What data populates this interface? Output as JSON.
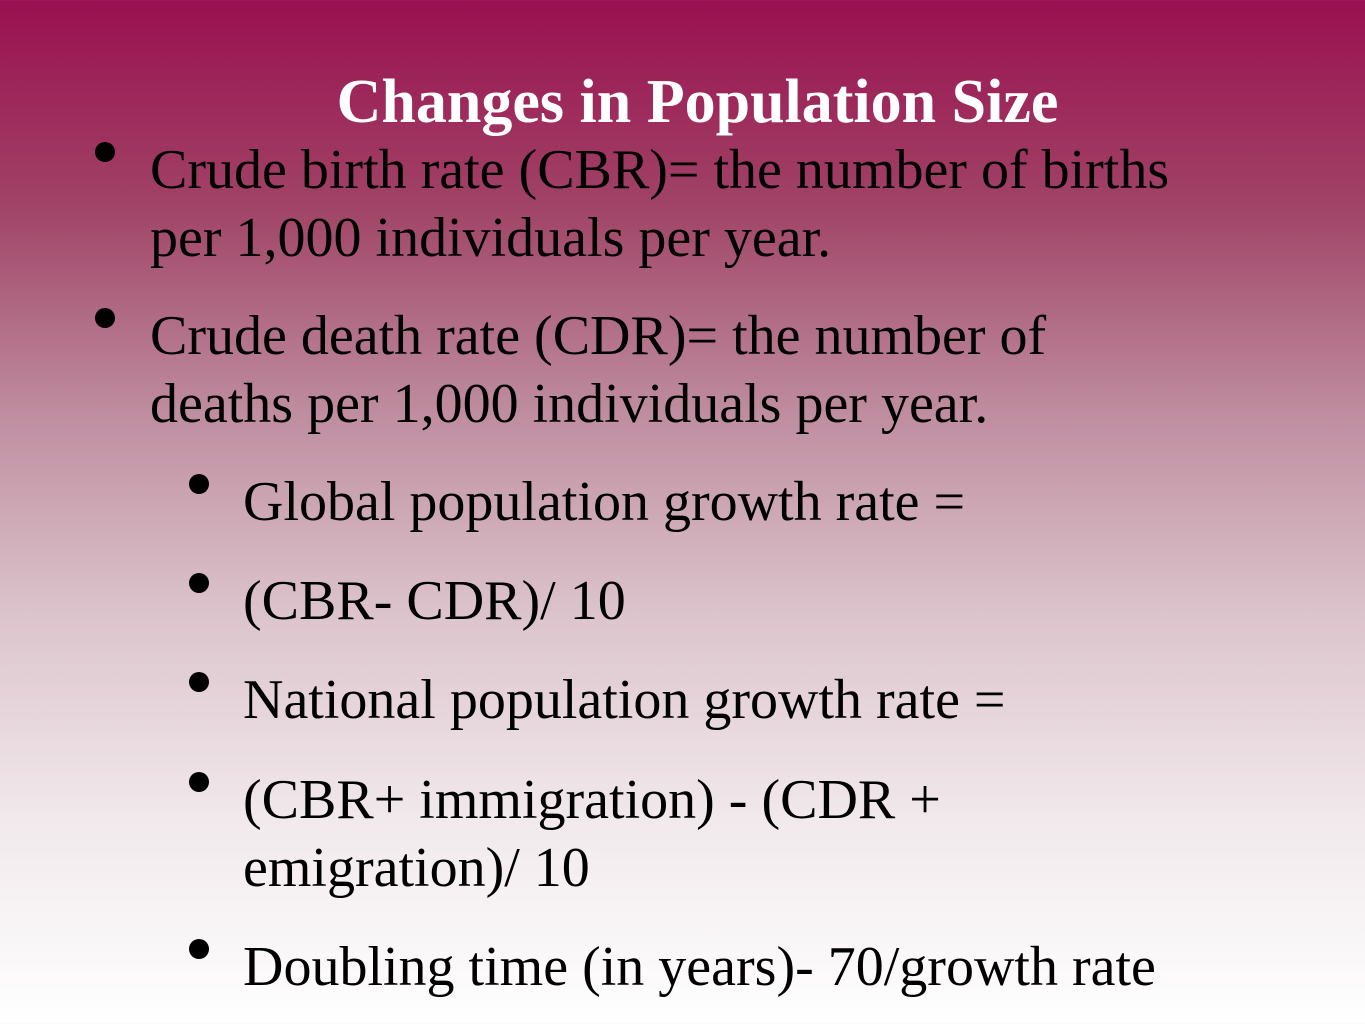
{
  "slide": {
    "title": "Changes in Population Size",
    "bullets": [
      {
        "lines": [
          "Crude birth rate (CBR)= the number of births",
          "per 1,000 individuals per year."
        ]
      },
      {
        "lines": [
          "Crude death rate (CDR)= the number of",
          "deaths per 1,000 individuals per year."
        ]
      }
    ],
    "sub_bullets": [
      {
        "lines": [
          "Global population growth rate ="
        ]
      },
      {
        "lines": [
          "(CBR- CDR)/ 10"
        ]
      },
      {
        "lines": [
          "National population growth rate ="
        ]
      },
      {
        "lines": [
          "(CBR+ immigration) - (CDR +",
          "emigration)/ 10"
        ]
      },
      {
        "lines": [
          "Doubling time (in years)- 70/growth rate"
        ]
      }
    ]
  }
}
